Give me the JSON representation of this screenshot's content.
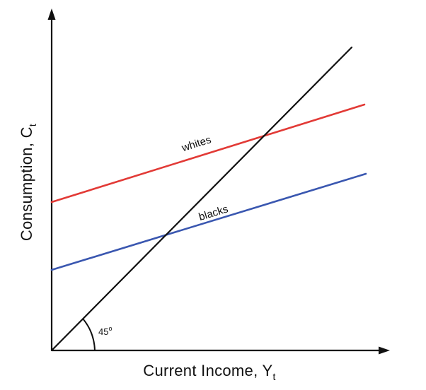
{
  "diagram": {
    "x_axis_label": "Current Income, Y",
    "x_axis_subscript": "t",
    "y_axis_label": "Consumption, C",
    "y_axis_subscript": "t",
    "angle_label": "45",
    "angle_degree_symbol": "o"
  },
  "lines": [
    {
      "id": "whites",
      "label": "whites",
      "color": "#e23a36"
    },
    {
      "id": "blacks",
      "label": "blacks",
      "color": "#3a57b0"
    },
    {
      "id": "forty-five",
      "label": "",
      "color": "#111111"
    }
  ]
}
